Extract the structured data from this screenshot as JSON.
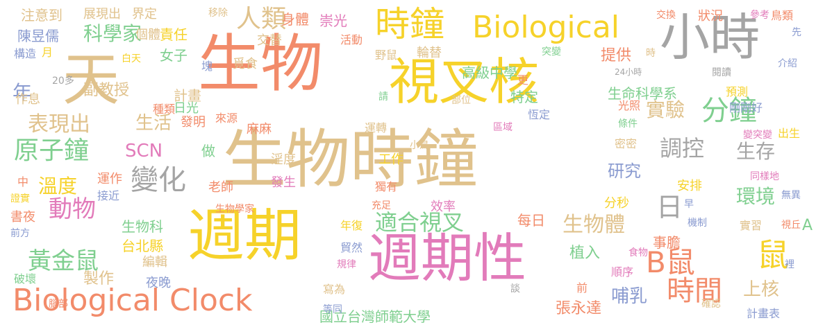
{
  "words": [
    {
      "t": "生物時鐘",
      "c": "#E0C28C"
    },
    {
      "t": "生物",
      "c": "#F28B6A"
    },
    {
      "t": "週期",
      "c": "#F6D22A"
    },
    {
      "t": "週期性",
      "c": "#E27BBA"
    },
    {
      "t": "視叉核",
      "c": "#F6D22A"
    },
    {
      "t": "小時",
      "c": "#A4A4A4"
    },
    {
      "t": "天",
      "c": "#E0C28C"
    },
    {
      "t": "時鐘",
      "c": "#F6D22A"
    },
    {
      "t": "Biological",
      "c": "#F6D22A"
    },
    {
      "t": "Biological Clock",
      "c": "#F28B6A"
    },
    {
      "t": "分鐘",
      "c": "#7FCF8F"
    },
    {
      "t": "鼠",
      "c": "#F6D22A"
    },
    {
      "t": "B鼠",
      "c": "#F28B6A"
    },
    {
      "t": "日",
      "c": "#A4A4A4"
    },
    {
      "t": "時間",
      "c": "#F28B6A"
    },
    {
      "t": "變化",
      "c": "#A4A4A4"
    },
    {
      "t": "人類",
      "c": "#E0C28C"
    },
    {
      "t": "原子鐘",
      "c": "#7FCF8F"
    },
    {
      "t": "黃金鼠",
      "c": "#7FCF8F"
    },
    {
      "t": "動物",
      "c": "#E27BBA"
    },
    {
      "t": "適合視叉",
      "c": "#7FCF8F"
    },
    {
      "t": "調控",
      "c": "#A4A4A4"
    },
    {
      "t": "生存",
      "c": "#A4A4A4"
    },
    {
      "t": "環境",
      "c": "#7FCF8F"
    },
    {
      "t": "實驗",
      "c": "#E0C28C"
    },
    {
      "t": "生物體",
      "c": "#E0C28C"
    },
    {
      "t": "科學家",
      "c": "#7FCF8F"
    },
    {
      "t": "表現出",
      "c": "#E0C28C"
    },
    {
      "t": "SCN",
      "c": "#E27BBA"
    },
    {
      "t": "溫度",
      "c": "#F6D22A"
    },
    {
      "t": "上核",
      "c": "#E0C28C"
    },
    {
      "t": "A",
      "c": "#7FCF8F"
    },
    {
      "t": "高級中學",
      "c": "#7FCF8F"
    },
    {
      "t": "國立台灣師範大學",
      "c": "#7FCF8F"
    },
    {
      "t": "張永達",
      "c": "#F28B6A"
    },
    {
      "t": "生命科學系",
      "c": "#7FCF8F"
    },
    {
      "t": "研究",
      "c": "#8A9BD0"
    },
    {
      "t": "植入",
      "c": "#7FCF8F"
    },
    {
      "t": "哺乳",
      "c": "#8A9BD0"
    },
    {
      "t": "年",
      "c": "#8A9BD0"
    },
    {
      "t": "生活",
      "c": "#E0C28C"
    },
    {
      "t": "副教授",
      "c": "#E0C28C"
    },
    {
      "t": "計畫",
      "c": "#E0C28C"
    },
    {
      "t": "生物科",
      "c": "#7FCF8F"
    },
    {
      "t": "台北縣",
      "c": "#F6D22A"
    },
    {
      "t": "編輯",
      "c": "#E0C28C"
    },
    {
      "t": "製作",
      "c": "#E0C28C"
    },
    {
      "t": "夜晚",
      "c": "#8A9BD0"
    },
    {
      "t": "注意到",
      "c": "#E0C28C"
    },
    {
      "t": "展現出",
      "c": "#E0C28C"
    },
    {
      "t": "界定",
      "c": "#E0C28C"
    },
    {
      "t": "責任",
      "c": "#F6D22A"
    },
    {
      "t": "移除",
      "c": "#E0C28C"
    },
    {
      "t": "身體",
      "c": "#F28B6A"
    },
    {
      "t": "崇光",
      "c": "#E27BBA"
    },
    {
      "t": "陳昱儒",
      "c": "#8A9BD0"
    },
    {
      "t": "個體",
      "c": "#E0C28C"
    },
    {
      "t": "交替",
      "c": "#E0C28C"
    },
    {
      "t": "構造",
      "c": "#8A9BD0"
    },
    {
      "t": "月",
      "c": "#F6D22A"
    },
    {
      "t": "白天",
      "c": "#F6D22A"
    },
    {
      "t": "女子",
      "c": "#7FCF8F"
    },
    {
      "t": "塊",
      "c": "#8A9BD0"
    },
    {
      "t": "覓食",
      "c": "#E0C28C"
    },
    {
      "t": "作息",
      "c": "#E0C28C"
    },
    {
      "t": "20多",
      "c": "#A4A4A4"
    },
    {
      "t": "日光",
      "c": "#7FCF8F"
    },
    {
      "t": "種類",
      "c": "#F28B6A"
    },
    {
      "t": "發明",
      "c": "#F28B6A"
    },
    {
      "t": "來源",
      "c": "#F28B6A"
    },
    {
      "t": "做",
      "c": "#7FCF8F"
    },
    {
      "t": "麻麻",
      "c": "#F28B6A"
    },
    {
      "t": "運作",
      "c": "#F28B6A"
    },
    {
      "t": "接近",
      "c": "#8A9BD0"
    },
    {
      "t": "中",
      "c": "#F28B6A"
    },
    {
      "t": "證實",
      "c": "#F6D22A"
    },
    {
      "t": "書夜",
      "c": "#F28B6A"
    },
    {
      "t": "前方",
      "c": "#8A9BD0"
    },
    {
      "t": "老師",
      "c": "#F28B6A"
    },
    {
      "t": "生物學家",
      "c": "#F28B6A"
    },
    {
      "t": "淫度",
      "c": "#E0C28C"
    },
    {
      "t": "發生",
      "c": "#E27BBA"
    },
    {
      "t": "破壞",
      "c": "#7FCF8F"
    },
    {
      "t": "腦部",
      "c": "#F28B6A"
    },
    {
      "t": "活動",
      "c": "#F28B6A"
    },
    {
      "t": "野鼠",
      "c": "#E0C28C"
    },
    {
      "t": "輪替",
      "c": "#E0C28C"
    },
    {
      "t": "突變",
      "c": "#7FCF8F"
    },
    {
      "t": "提供",
      "c": "#F28B6A"
    },
    {
      "t": "更",
      "c": "#F28B6A"
    },
    {
      "t": "特定",
      "c": "#7FCF8F"
    },
    {
      "t": "恆定",
      "c": "#8A9BD0"
    },
    {
      "t": "請",
      "c": "#7FCF8F"
    },
    {
      "t": "部位",
      "c": "#E0C28C"
    },
    {
      "t": "運轉",
      "c": "#E0C28C"
    },
    {
      "t": "區域",
      "c": "#E27BBA"
    },
    {
      "t": "小鳥",
      "c": "#E0C28C"
    },
    {
      "t": "工作",
      "c": "#F6D22A"
    },
    {
      "t": "獨有",
      "c": "#F28B6A"
    },
    {
      "t": "充足",
      "c": "#F28B6A"
    },
    {
      "t": "效率",
      "c": "#E27BBA"
    },
    {
      "t": "年復",
      "c": "#F6D22A"
    },
    {
      "t": "貿然",
      "c": "#8A9BD0"
    },
    {
      "t": "規律",
      "c": "#E27BBA"
    },
    {
      "t": "寫為",
      "c": "#E0C28C"
    },
    {
      "t": "等同",
      "c": "#8A9BD0"
    },
    {
      "t": "談",
      "c": "#A4A4A4"
    },
    {
      "t": "每日",
      "c": "#F28B6A"
    },
    {
      "t": "事膽",
      "c": "#F28B6A"
    },
    {
      "t": "前",
      "c": "#F28B6A"
    },
    {
      "t": "順序",
      "c": "#E27BBA"
    },
    {
      "t": "食物",
      "c": "#E27BBA"
    },
    {
      "t": "光照",
      "c": "#F28B6A"
    },
    {
      "t": "條件",
      "c": "#7FCF8F"
    },
    {
      "t": "密密",
      "c": "#E0C28C"
    },
    {
      "t": "安排",
      "c": "#F6D22A"
    },
    {
      "t": "分秒",
      "c": "#F6D22A"
    },
    {
      "t": "早",
      "c": "#8A9BD0"
    },
    {
      "t": "機制",
      "c": "#8A9BD0"
    },
    {
      "t": "實習",
      "c": "#E0C28C"
    },
    {
      "t": "視丘",
      "c": "#F28B6A"
    },
    {
      "t": "裡",
      "c": "#8A9BD0"
    },
    {
      "t": "確認",
      "c": "#E0C28C"
    },
    {
      "t": "計畫表",
      "c": "#8A9BD0"
    },
    {
      "t": "交換",
      "c": "#F28B6A"
    },
    {
      "t": "狀況",
      "c": "#F28B6A"
    },
    {
      "t": "參考",
      "c": "#E27BBA"
    },
    {
      "t": "鳥類",
      "c": "#F28B6A"
    },
    {
      "t": "先",
      "c": "#8A9BD0"
    },
    {
      "t": "時",
      "c": "#E0C28C"
    },
    {
      "t": "24小時",
      "c": "#A4A4A4"
    },
    {
      "t": "閱讀",
      "c": "#A4A4A4"
    },
    {
      "t": "介紹",
      "c": "#8A9BD0"
    },
    {
      "t": "預測",
      "c": "#F6D22A"
    },
    {
      "t": "剛剛好",
      "c": "#8A9BD0"
    },
    {
      "t": "變突變",
      "c": "#E27BBA"
    },
    {
      "t": "出生",
      "c": "#F6D22A"
    },
    {
      "t": "同樣地",
      "c": "#E27BBA"
    },
    {
      "t": "無異",
      "c": "#8A9BD0"
    }
  ]
}
